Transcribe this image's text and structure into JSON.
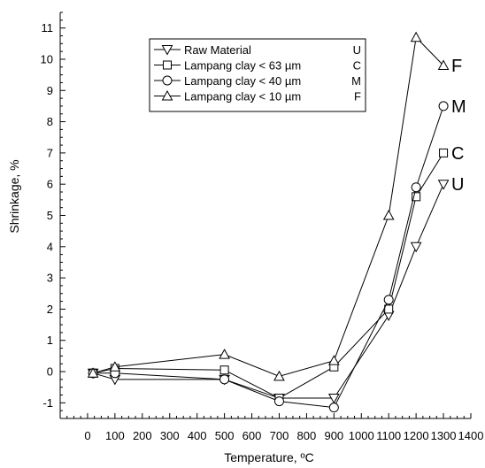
{
  "chart_data": {
    "type": "line",
    "xlabel": "Temperature, ºC",
    "ylabel": "Shrinkage, %",
    "xlim": [
      -100,
      1400
    ],
    "ylim": [
      -1.5,
      11.5
    ],
    "xticks": [
      0,
      100,
      200,
      300,
      400,
      500,
      600,
      700,
      800,
      900,
      1000,
      1100,
      1200,
      1300,
      1400
    ],
    "xtick_labels": [
      "0",
      "100",
      "200",
      "300",
      "400",
      "500",
      "600",
      "700",
      "800",
      "900",
      "1000",
      "1100",
      "1200",
      "1300",
      "1400"
    ],
    "yticks": [
      -1,
      0,
      1,
      2,
      3,
      4,
      5,
      6,
      7,
      8,
      9,
      10,
      11
    ],
    "ytick_labels": [
      "-1",
      "0",
      "1",
      "2",
      "3",
      "4",
      "5",
      "6",
      "7",
      "8",
      "9",
      "10",
      "11"
    ],
    "grid": false,
    "legend_position": "top-center",
    "series": [
      {
        "name": "Raw Material",
        "code": "U",
        "marker": "triangle-down",
        "x": [
          20,
          100,
          500,
          700,
          900,
          1100,
          1200,
          1300
        ],
        "y": [
          -0.05,
          -0.25,
          -0.25,
          -0.85,
          -0.85,
          1.8,
          4.0,
          6.0
        ]
      },
      {
        "name": "Lampang clay < 63 µm",
        "code": "C",
        "marker": "square",
        "x": [
          20,
          100,
          500,
          700,
          900,
          1100,
          1200,
          1300
        ],
        "y": [
          -0.05,
          0.1,
          0.05,
          -0.85,
          0.15,
          2.0,
          5.6,
          7.0
        ]
      },
      {
        "name": "Lampang clay < 40 µm",
        "code": "M",
        "marker": "circle",
        "x": [
          20,
          100,
          500,
          700,
          900,
          1100,
          1200,
          1300
        ],
        "y": [
          -0.05,
          -0.05,
          -0.25,
          -0.95,
          -1.15,
          2.3,
          5.9,
          8.5
        ]
      },
      {
        "name": "Lampang clay < 10 µm",
        "code": "F",
        "marker": "triangle-up",
        "x": [
          20,
          100,
          500,
          700,
          900,
          1100,
          1200,
          1300
        ],
        "y": [
          -0.05,
          0.15,
          0.55,
          -0.15,
          0.35,
          5.0,
          10.7,
          9.8
        ]
      }
    ],
    "end_labels": [
      {
        "text": "F",
        "y": 9.8
      },
      {
        "text": "M",
        "y": 8.5
      },
      {
        "text": "C",
        "y": 7.0
      },
      {
        "text": "U",
        "y": 6.0
      }
    ]
  }
}
